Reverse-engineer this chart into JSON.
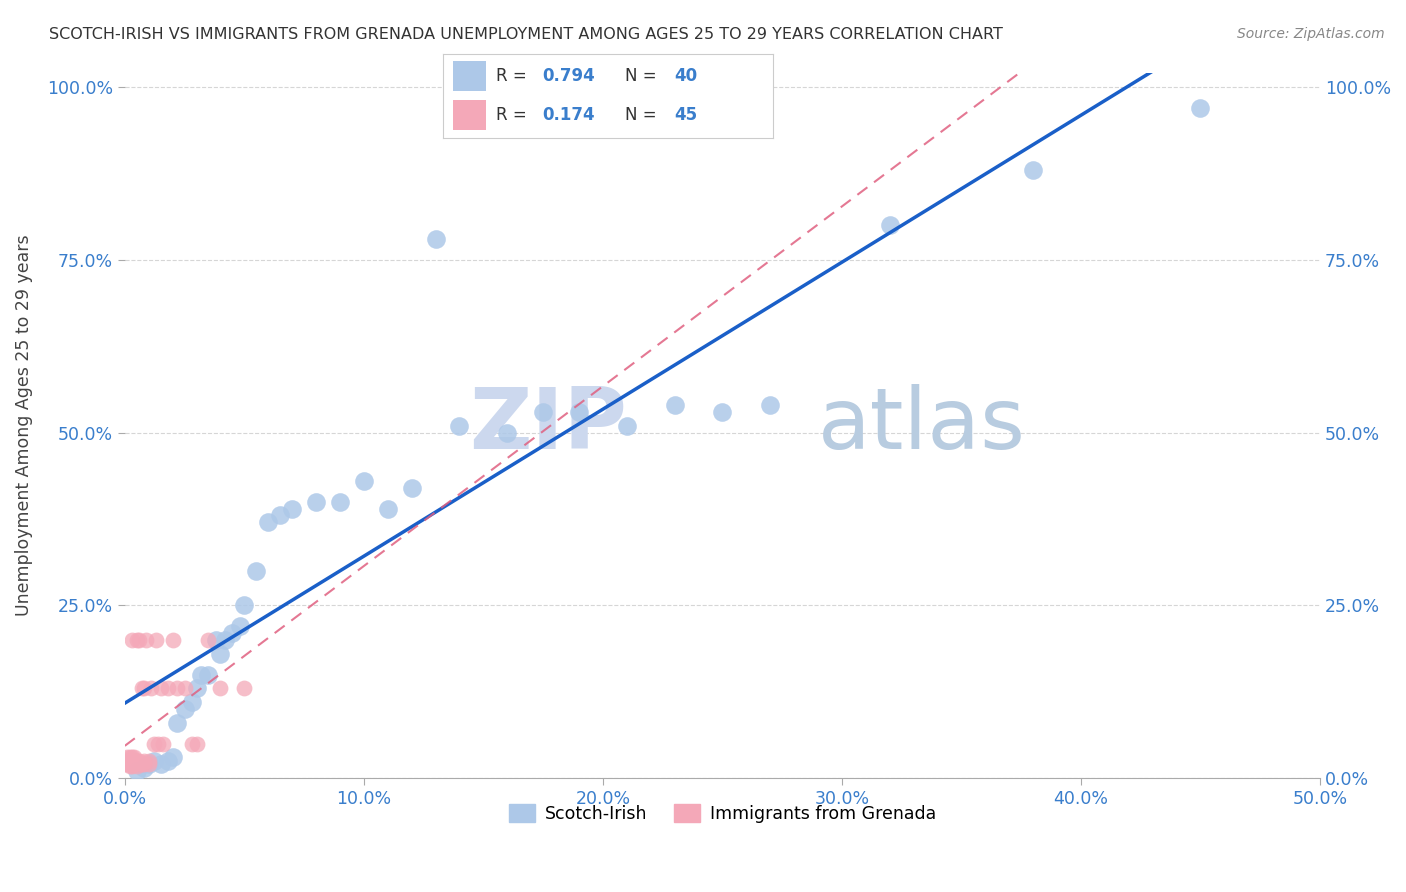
{
  "title": "SCOTCH-IRISH VS IMMIGRANTS FROM GRENADA UNEMPLOYMENT AMONG AGES 25 TO 29 YEARS CORRELATION CHART",
  "source": "Source: ZipAtlas.com",
  "ylabel_label": "Unemployment Among Ages 25 to 29 years",
  "legend_label1": "Scotch-Irish",
  "legend_label2": "Immigrants from Grenada",
  "R1": "0.794",
  "N1": "40",
  "R2": "0.174",
  "N2": "45",
  "scotch_irish_color": "#adc8e8",
  "grenada_color": "#f4a8b8",
  "line1_color": "#1a5fc8",
  "line2_color": "#e06080",
  "watermark_zip_color": "#ccdaee",
  "watermark_atlas_color": "#b8cce0",
  "title_color": "#333333",
  "axis_label_color": "#444444",
  "tick_color": "#3a7ecc",
  "grid_color": "#cccccc",
  "background_color": "#ffffff",
  "scotch_irish_x": [
    0.005,
    0.008,
    0.01,
    0.012,
    0.015,
    0.018,
    0.02,
    0.022,
    0.025,
    0.028,
    0.03,
    0.032,
    0.035,
    0.038,
    0.04,
    0.042,
    0.045,
    0.048,
    0.05,
    0.055,
    0.06,
    0.065,
    0.07,
    0.08,
    0.09,
    0.1,
    0.11,
    0.12,
    0.13,
    0.14,
    0.16,
    0.175,
    0.19,
    0.21,
    0.23,
    0.25,
    0.27,
    0.32,
    0.38,
    0.45
  ],
  "scotch_irish_y": [
    0.01,
    0.015,
    0.02,
    0.025,
    0.02,
    0.025,
    0.03,
    0.08,
    0.1,
    0.11,
    0.13,
    0.15,
    0.15,
    0.2,
    0.18,
    0.2,
    0.21,
    0.22,
    0.25,
    0.3,
    0.37,
    0.38,
    0.39,
    0.4,
    0.4,
    0.43,
    0.39,
    0.42,
    0.78,
    0.51,
    0.5,
    0.53,
    0.53,
    0.51,
    0.54,
    0.53,
    0.54,
    0.8,
    0.88,
    0.97
  ],
  "grenada_x": [
    0.0005,
    0.001,
    0.001,
    0.0015,
    0.0015,
    0.002,
    0.002,
    0.002,
    0.0025,
    0.003,
    0.003,
    0.003,
    0.003,
    0.004,
    0.004,
    0.004,
    0.005,
    0.005,
    0.005,
    0.006,
    0.006,
    0.006,
    0.007,
    0.007,
    0.008,
    0.008,
    0.008,
    0.009,
    0.01,
    0.01,
    0.011,
    0.012,
    0.013,
    0.014,
    0.015,
    0.016,
    0.018,
    0.02,
    0.022,
    0.025,
    0.028,
    0.03,
    0.035,
    0.04,
    0.05
  ],
  "grenada_y": [
    0.02,
    0.025,
    0.03,
    0.02,
    0.025,
    0.018,
    0.022,
    0.03,
    0.02,
    0.018,
    0.025,
    0.03,
    0.2,
    0.02,
    0.025,
    0.03,
    0.018,
    0.025,
    0.2,
    0.02,
    0.025,
    0.2,
    0.02,
    0.13,
    0.02,
    0.025,
    0.13,
    0.2,
    0.02,
    0.025,
    0.13,
    0.05,
    0.2,
    0.05,
    0.13,
    0.05,
    0.13,
    0.2,
    0.13,
    0.13,
    0.05,
    0.05,
    0.2,
    0.13,
    0.13
  ],
  "xmin": 0.0,
  "xmax": 0.5,
  "ymin": 0.0,
  "ymax": 1.02
}
